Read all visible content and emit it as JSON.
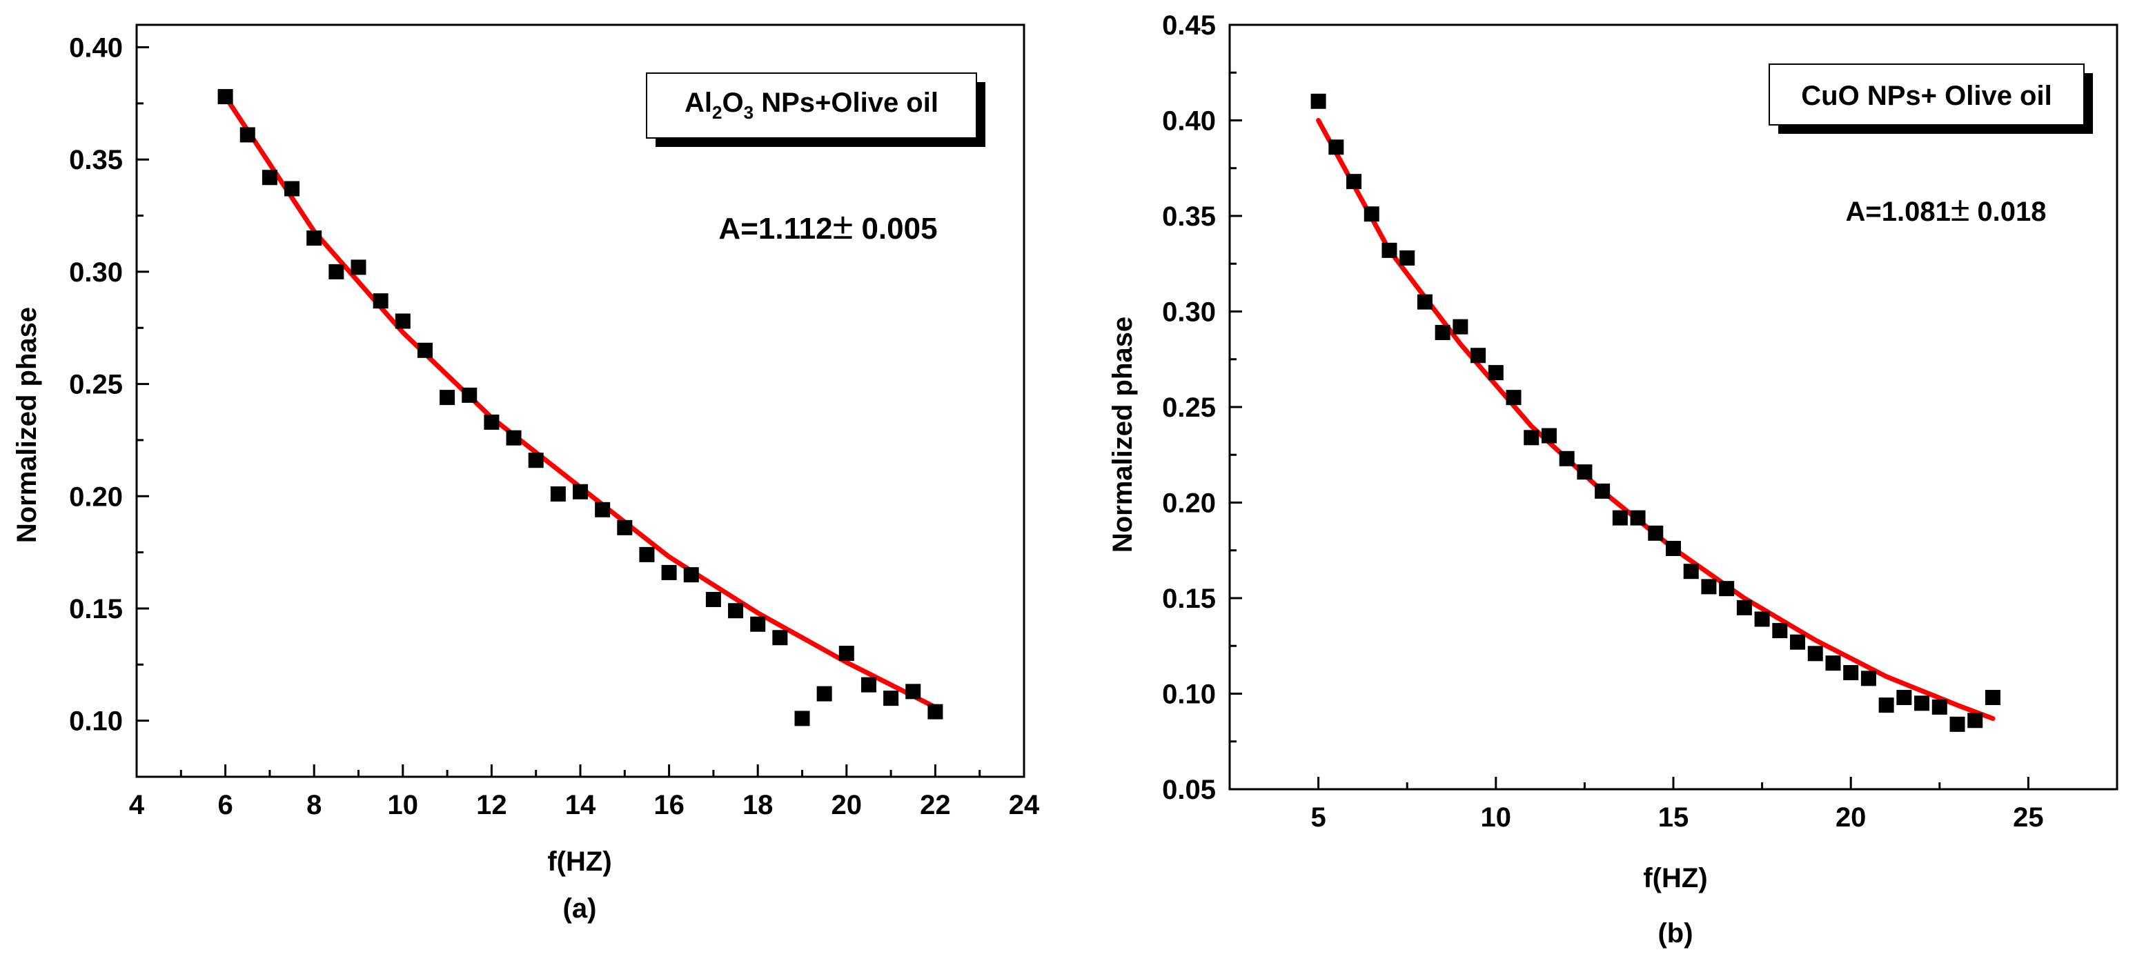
{
  "chart_data": [
    {
      "type": "scatter",
      "panel_label": "(a)",
      "xlabel": "f(HZ)",
      "ylabel": "Normalized phase",
      "xlim": [
        4,
        24
      ],
      "ylim": [
        0.075,
        0.41
      ],
      "xticks": [
        4,
        6,
        8,
        10,
        12,
        14,
        16,
        18,
        20,
        22,
        24
      ],
      "yticks": [
        0.1,
        0.15,
        0.2,
        0.25,
        0.3,
        0.35,
        0.4
      ],
      "legend": {
        "base": "Al",
        "sub1": "2",
        "mid": "O",
        "sub2": "3",
        "rest": " NPs+Olive oil",
        "location": "top-right"
      },
      "annotation": {
        "text": "A=1.112",
        "pm": "±",
        "err": " 0.005"
      },
      "series": [
        {
          "name": "data",
          "marker": "square",
          "color": "#000000",
          "x": [
            6,
            6.5,
            7,
            7.5,
            8,
            8.5,
            9,
            9.5,
            10,
            10.5,
            11,
            11.5,
            12,
            12.5,
            13,
            13.5,
            14,
            14.5,
            15,
            15.5,
            16,
            16.5,
            17,
            17.5,
            18,
            18.5,
            19,
            19.5,
            20,
            20.5,
            21,
            21.5,
            22
          ],
          "y": [
            0.378,
            0.361,
            0.342,
            0.337,
            0.315,
            0.3,
            0.302,
            0.287,
            0.278,
            0.265,
            0.244,
            0.245,
            0.233,
            0.226,
            0.216,
            0.201,
            0.202,
            0.194,
            0.186,
            0.174,
            0.166,
            0.165,
            0.154,
            0.149,
            0.143,
            0.137,
            0.101,
            0.112,
            0.13,
            0.116,
            0.11,
            0.113,
            0.104
          ]
        },
        {
          "name": "fit",
          "type": "line",
          "color": "#ff0000",
          "x": [
            6,
            8,
            10,
            12,
            14,
            16,
            18,
            20,
            22
          ],
          "y": [
            0.378,
            0.318,
            0.273,
            0.235,
            0.204,
            0.173,
            0.148,
            0.126,
            0.106
          ]
        }
      ]
    },
    {
      "type": "scatter",
      "panel_label": "(b)",
      "xlabel": "f(HZ)",
      "ylabel": "Normalized phase",
      "xlim": [
        2.5,
        27.5
      ],
      "ylim": [
        0.05,
        0.45
      ],
      "xticks": [
        5,
        10,
        15,
        20,
        25
      ],
      "yticks": [
        0.05,
        0.1,
        0.15,
        0.2,
        0.25,
        0.3,
        0.35,
        0.4,
        0.45
      ],
      "legend": {
        "text": "CuO NPs+ Olive oil",
        "location": "top-right"
      },
      "annotation": {
        "text": "A=1.081",
        "pm": "±",
        "err": " 0.018"
      },
      "series": [
        {
          "name": "data",
          "marker": "square",
          "color": "#000000",
          "x": [
            5,
            5.5,
            6,
            6.5,
            7,
            7.5,
            8,
            8.5,
            9,
            9.5,
            10,
            10.5,
            11,
            11.5,
            12,
            12.5,
            13,
            13.5,
            14,
            14.5,
            15,
            15.5,
            16,
            16.5,
            17,
            17.5,
            18,
            18.5,
            19,
            19.5,
            20,
            20.5,
            21,
            21.5,
            22,
            22.5,
            23,
            23.5,
            24
          ],
          "y": [
            0.41,
            0.386,
            0.368,
            0.351,
            0.332,
            0.328,
            0.305,
            0.289,
            0.292,
            0.277,
            0.268,
            0.255,
            0.234,
            0.235,
            0.223,
            0.216,
            0.206,
            0.192,
            0.192,
            0.184,
            0.176,
            0.164,
            0.156,
            0.155,
            0.145,
            0.139,
            0.133,
            0.127,
            0.121,
            0.116,
            0.111,
            0.108,
            0.094,
            0.098,
            0.095,
            0.093,
            0.084,
            0.086,
            0.098
          ]
        },
        {
          "name": "fit",
          "type": "line",
          "color": "#ff0000",
          "x": [
            5,
            7,
            9,
            11,
            13,
            15,
            17,
            19,
            21,
            23,
            24
          ],
          "y": [
            0.4,
            0.332,
            0.283,
            0.24,
            0.206,
            0.176,
            0.15,
            0.128,
            0.109,
            0.094,
            0.087
          ]
        }
      ]
    }
  ]
}
